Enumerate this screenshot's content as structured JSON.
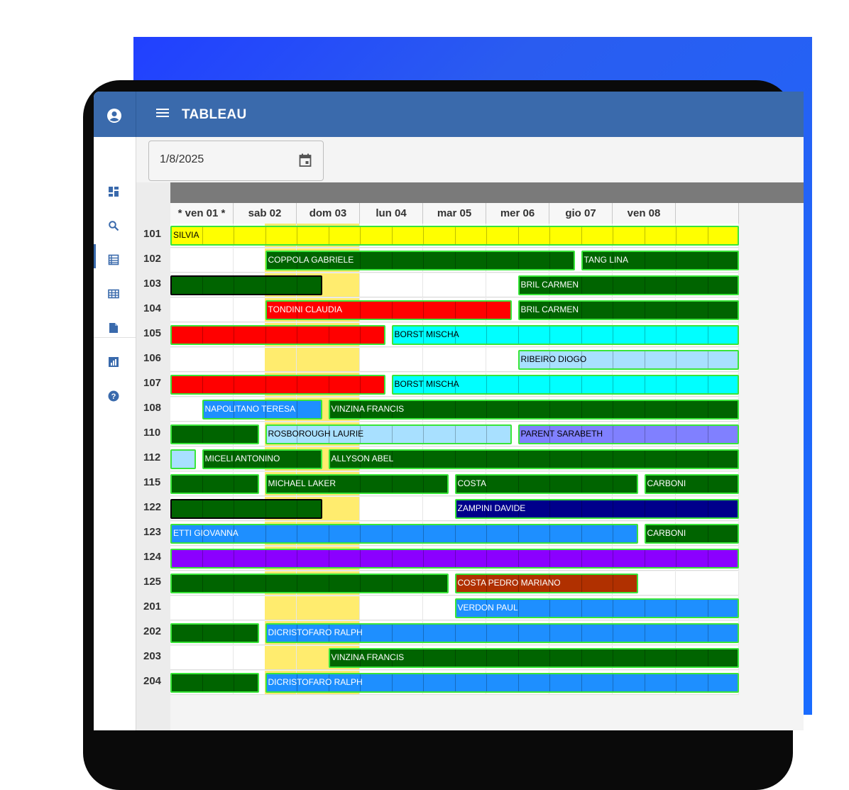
{
  "app": {
    "title": "TABLEAU",
    "date_value": "1/8/2025"
  },
  "sidebar": {
    "items": [
      {
        "icon": "dashboard-icon"
      },
      {
        "icon": "search-icon"
      },
      {
        "icon": "list-icon"
      },
      {
        "icon": "grid-icon",
        "active": true
      },
      {
        "icon": "document-icon"
      },
      {
        "icon": "chart-icon"
      },
      {
        "icon": "help-icon"
      }
    ]
  },
  "days": [
    "* ven 01 *",
    "sab 02",
    "dom 03",
    "lun 04",
    "mar 05",
    "mer 06",
    "gio 07",
    "ven 08"
  ],
  "weekend_columns": [
    1,
    2
  ],
  "rooms": [
    {
      "number": "101",
      "bookings": [
        {
          "start": 0,
          "end": 9,
          "label": "SILVIA",
          "color": "#ffff00",
          "text": "#000"
        }
      ]
    },
    {
      "number": "102",
      "bookings": [
        {
          "start": 1.5,
          "end": 6.4,
          "label": "COPPOLA GABRIELE",
          "color": "#006400",
          "text": "#fff"
        },
        {
          "start": 6.5,
          "end": 9,
          "label": "TANG LINA",
          "color": "#006400",
          "text": "#fff"
        }
      ]
    },
    {
      "number": "103",
      "bookings": [
        {
          "start": 0,
          "end": 2.4,
          "label": "",
          "color": "#006400",
          "text": "#fff",
          "black": true
        },
        {
          "start": 5.5,
          "end": 9,
          "label": "BRIL CARMEN",
          "color": "#006400",
          "text": "#fff"
        }
      ]
    },
    {
      "number": "104",
      "bookings": [
        {
          "start": 1.5,
          "end": 5.4,
          "label": "TONDINI CLAUDIA",
          "color": "#ff0000",
          "text": "#fff"
        },
        {
          "start": 5.5,
          "end": 9,
          "label": "BRIL CARMEN",
          "color": "#006400",
          "text": "#fff"
        }
      ]
    },
    {
      "number": "105",
      "bookings": [
        {
          "start": 0,
          "end": 3.4,
          "label": "",
          "color": "#ff0000",
          "text": "#fff"
        },
        {
          "start": 3.5,
          "end": 9,
          "label": "BORST MISCHA",
          "color": "#00ffff",
          "text": "#000"
        }
      ]
    },
    {
      "number": "106",
      "bookings": [
        {
          "start": 5.5,
          "end": 9,
          "label": "RIBEIRO DIOGO",
          "color": "#a8e0ff",
          "text": "#000"
        }
      ]
    },
    {
      "number": "107",
      "bookings": [
        {
          "start": 0,
          "end": 3.4,
          "label": "",
          "color": "#ff0000",
          "text": "#fff"
        },
        {
          "start": 3.5,
          "end": 9,
          "label": "BORST MISCHA",
          "color": "#00ffff",
          "text": "#000"
        }
      ]
    },
    {
      "number": "108",
      "bookings": [
        {
          "start": 0.5,
          "end": 2.4,
          "label": "NAPOLITANO TERESA",
          "color": "#1e8fff",
          "text": "#fff"
        },
        {
          "start": 2.5,
          "end": 9,
          "label": "VINZINA FRANCIS",
          "color": "#006400",
          "text": "#fff"
        }
      ]
    },
    {
      "number": "110",
      "bookings": [
        {
          "start": 0,
          "end": 1.4,
          "label": "",
          "color": "#006400",
          "text": "#fff"
        },
        {
          "start": 1.5,
          "end": 5.4,
          "label": "ROSBOROUGH LAURIE",
          "color": "#a8e0ff",
          "text": "#000"
        },
        {
          "start": 5.5,
          "end": 9,
          "label": "PARENT SARABETH",
          "color": "#8080ff",
          "text": "#000"
        }
      ]
    },
    {
      "number": "112",
      "bookings": [
        {
          "start": 0,
          "end": 0.4,
          "label": "",
          "color": "#a8e0ff",
          "text": "#000"
        },
        {
          "start": 0.5,
          "end": 2.4,
          "label": "MICELI ANTONINO",
          "color": "#006400",
          "text": "#fff"
        },
        {
          "start": 2.5,
          "end": 9,
          "label": "ALLYSON ABEL",
          "color": "#006400",
          "text": "#fff"
        }
      ]
    },
    {
      "number": "115",
      "bookings": [
        {
          "start": 0,
          "end": 1.4,
          "label": "",
          "color": "#006400",
          "text": "#fff"
        },
        {
          "start": 1.5,
          "end": 4.4,
          "label": "MICHAEL LAKER",
          "color": "#006400",
          "text": "#fff"
        },
        {
          "start": 4.5,
          "end": 7.4,
          "label": "COSTA",
          "color": "#006400",
          "text": "#fff"
        },
        {
          "start": 7.5,
          "end": 9,
          "label": "CARBONI",
          "color": "#006400",
          "text": "#fff"
        }
      ]
    },
    {
      "number": "122",
      "bookings": [
        {
          "start": 0,
          "end": 2.4,
          "label": "",
          "color": "#006400",
          "text": "#fff",
          "black": true
        },
        {
          "start": 4.5,
          "end": 9,
          "label": "ZAMPINI DAVIDE",
          "color": "#00008b",
          "text": "#fff"
        }
      ]
    },
    {
      "number": "123",
      "bookings": [
        {
          "start": 0,
          "end": 7.4,
          "label": "ETTI GIOVANNA",
          "color": "#1e8fff",
          "text": "#fff"
        },
        {
          "start": 7.5,
          "end": 9,
          "label": "CARBONI",
          "color": "#006400",
          "text": "#fff"
        }
      ]
    },
    {
      "number": "124",
      "bookings": [
        {
          "start": 0,
          "end": 9,
          "label": "",
          "color": "#8b00ff",
          "text": "#fff"
        }
      ]
    },
    {
      "number": "125",
      "bookings": [
        {
          "start": 0,
          "end": 4.4,
          "label": "",
          "color": "#006400",
          "text": "#fff"
        },
        {
          "start": 4.5,
          "end": 7.4,
          "label": "COSTA PEDRO MARIANO",
          "color": "#b03000",
          "text": "#fff"
        }
      ]
    },
    {
      "number": "201",
      "bookings": [
        {
          "start": 4.5,
          "end": 9,
          "label": "VERDON PAUL",
          "color": "#1e8fff",
          "text": "#fff"
        }
      ]
    },
    {
      "number": "202",
      "bookings": [
        {
          "start": 0,
          "end": 1.4,
          "label": "",
          "color": "#006400",
          "text": "#fff"
        },
        {
          "start": 1.5,
          "end": 9,
          "label": "DICRISTOFARO RALPH",
          "color": "#1e8fff",
          "text": "#fff"
        }
      ]
    },
    {
      "number": "203",
      "bookings": [
        {
          "start": 2.5,
          "end": 9,
          "label": "VINZINA FRANCIS",
          "color": "#006400",
          "text": "#fff"
        }
      ]
    },
    {
      "number": "204",
      "bookings": [
        {
          "start": 0,
          "end": 1.4,
          "label": "",
          "color": "#006400",
          "text": "#fff"
        },
        {
          "start": 1.5,
          "end": 9,
          "label": "DICRISTOFARO RALPH",
          "color": "#1e8fff",
          "text": "#fff"
        }
      ]
    }
  ]
}
